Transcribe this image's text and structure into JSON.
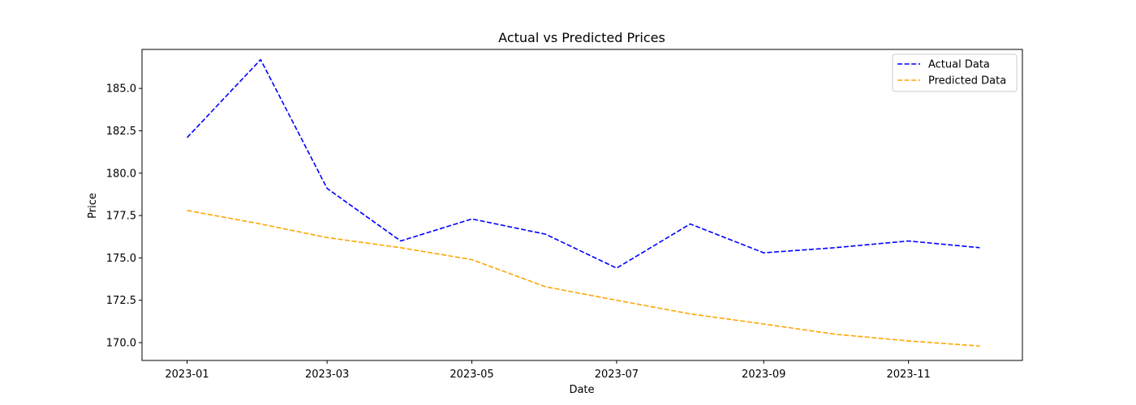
{
  "chart_data": {
    "type": "line",
    "title": "Actual vs Predicted Prices",
    "xlabel": "Date",
    "ylabel": "Price",
    "x": [
      "2023-01-01",
      "2023-02-01",
      "2023-03-01",
      "2023-04-01",
      "2023-05-01",
      "2023-06-01",
      "2023-07-01",
      "2023-08-01",
      "2023-09-01",
      "2023-10-01",
      "2023-11-01",
      "2023-12-01"
    ],
    "xticks": [
      "2023-01",
      "2023-03",
      "2023-05",
      "2023-07",
      "2023-09",
      "2023-11"
    ],
    "xtick_dates": [
      "2023-01-01",
      "2023-03-01",
      "2023-05-01",
      "2023-07-01",
      "2023-09-01",
      "2023-11-01"
    ],
    "xlim": [
      "2022-12-13",
      "2023-12-19"
    ],
    "ylim": [
      168.95,
      187.3
    ],
    "yticks": [
      170.0,
      172.5,
      175.0,
      177.5,
      180.0,
      182.5,
      185.0
    ],
    "yticks_labels": [
      "170.0",
      "172.5",
      "175.0",
      "177.5",
      "180.0",
      "182.5",
      "185.0"
    ],
    "grid": false,
    "legend_position": "top-right",
    "series": [
      {
        "name": "Actual Data",
        "color": "#0000ff",
        "style": "dashed",
        "values": [
          182.1,
          186.7,
          179.1,
          176.0,
          177.3,
          176.4,
          174.4,
          177.0,
          175.3,
          175.6,
          176.0,
          175.6
        ]
      },
      {
        "name": "Predicted Data",
        "color": "#ffa500",
        "style": "dashed",
        "values": [
          177.8,
          177.0,
          176.2,
          175.6,
          174.9,
          173.3,
          172.5,
          171.7,
          171.1,
          170.5,
          170.1,
          169.8
        ]
      }
    ]
  }
}
